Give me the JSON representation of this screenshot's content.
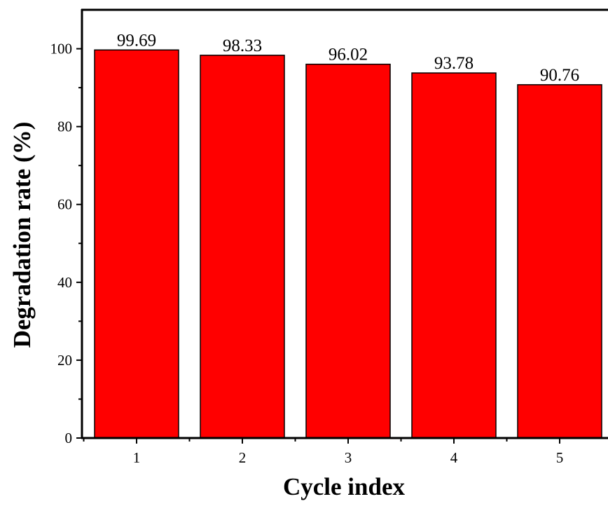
{
  "chart_data": {
    "type": "bar",
    "title": "",
    "xlabel": "Cycle index",
    "ylabel": "Degradation rate (%)",
    "categories": [
      "1",
      "2",
      "3",
      "4",
      "5"
    ],
    "values": [
      99.69,
      98.33,
      96.02,
      93.78,
      90.76
    ],
    "data_labels": [
      "99.69",
      "98.33",
      "96.02",
      "93.78",
      "90.76"
    ],
    "ylim": [
      0,
      110
    ],
    "yticks": [
      0,
      20,
      40,
      60,
      80,
      100
    ],
    "ytick_labels": [
      "0",
      "20",
      "40",
      "60",
      "80",
      "100"
    ],
    "bar_color": "#ff0000",
    "bar_edge_color": "#000000",
    "grid": false,
    "legend": "none"
  }
}
